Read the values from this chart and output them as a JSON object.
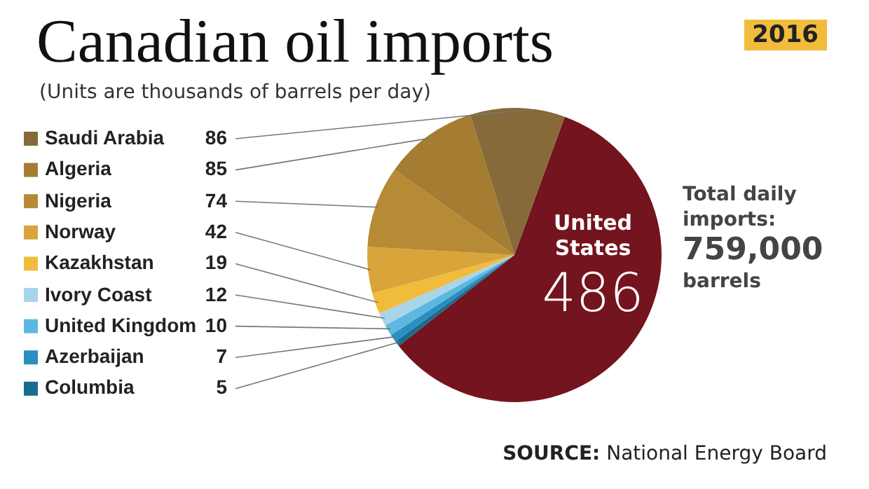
{
  "chart_data": {
    "type": "pie",
    "title": "Canadian oil imports",
    "subtitle": "(Units are thousands of barrels per day)",
    "categories": [
      "United States",
      "Columbia",
      "Azerbaijan",
      "United Kingdom",
      "Ivory Coast",
      "Kazakhstan",
      "Norway",
      "Nigeria",
      "Algeria",
      "Saudi Arabia"
    ],
    "values": [
      486,
      5,
      7,
      10,
      12,
      19,
      42,
      74,
      85,
      86
    ],
    "colors": [
      "#74141f",
      "#176d8e",
      "#2a8fbf",
      "#5cb8e0",
      "#a9d4ea",
      "#f1bc3c",
      "#d9a43a",
      "#b78a35",
      "#a57d32",
      "#866a3a"
    ],
    "data_labels": true,
    "legend": "left",
    "annotations": [
      "2016",
      "Total daily imports: 759,000 barrels",
      "SOURCE: National Energy Board"
    ]
  }
}
